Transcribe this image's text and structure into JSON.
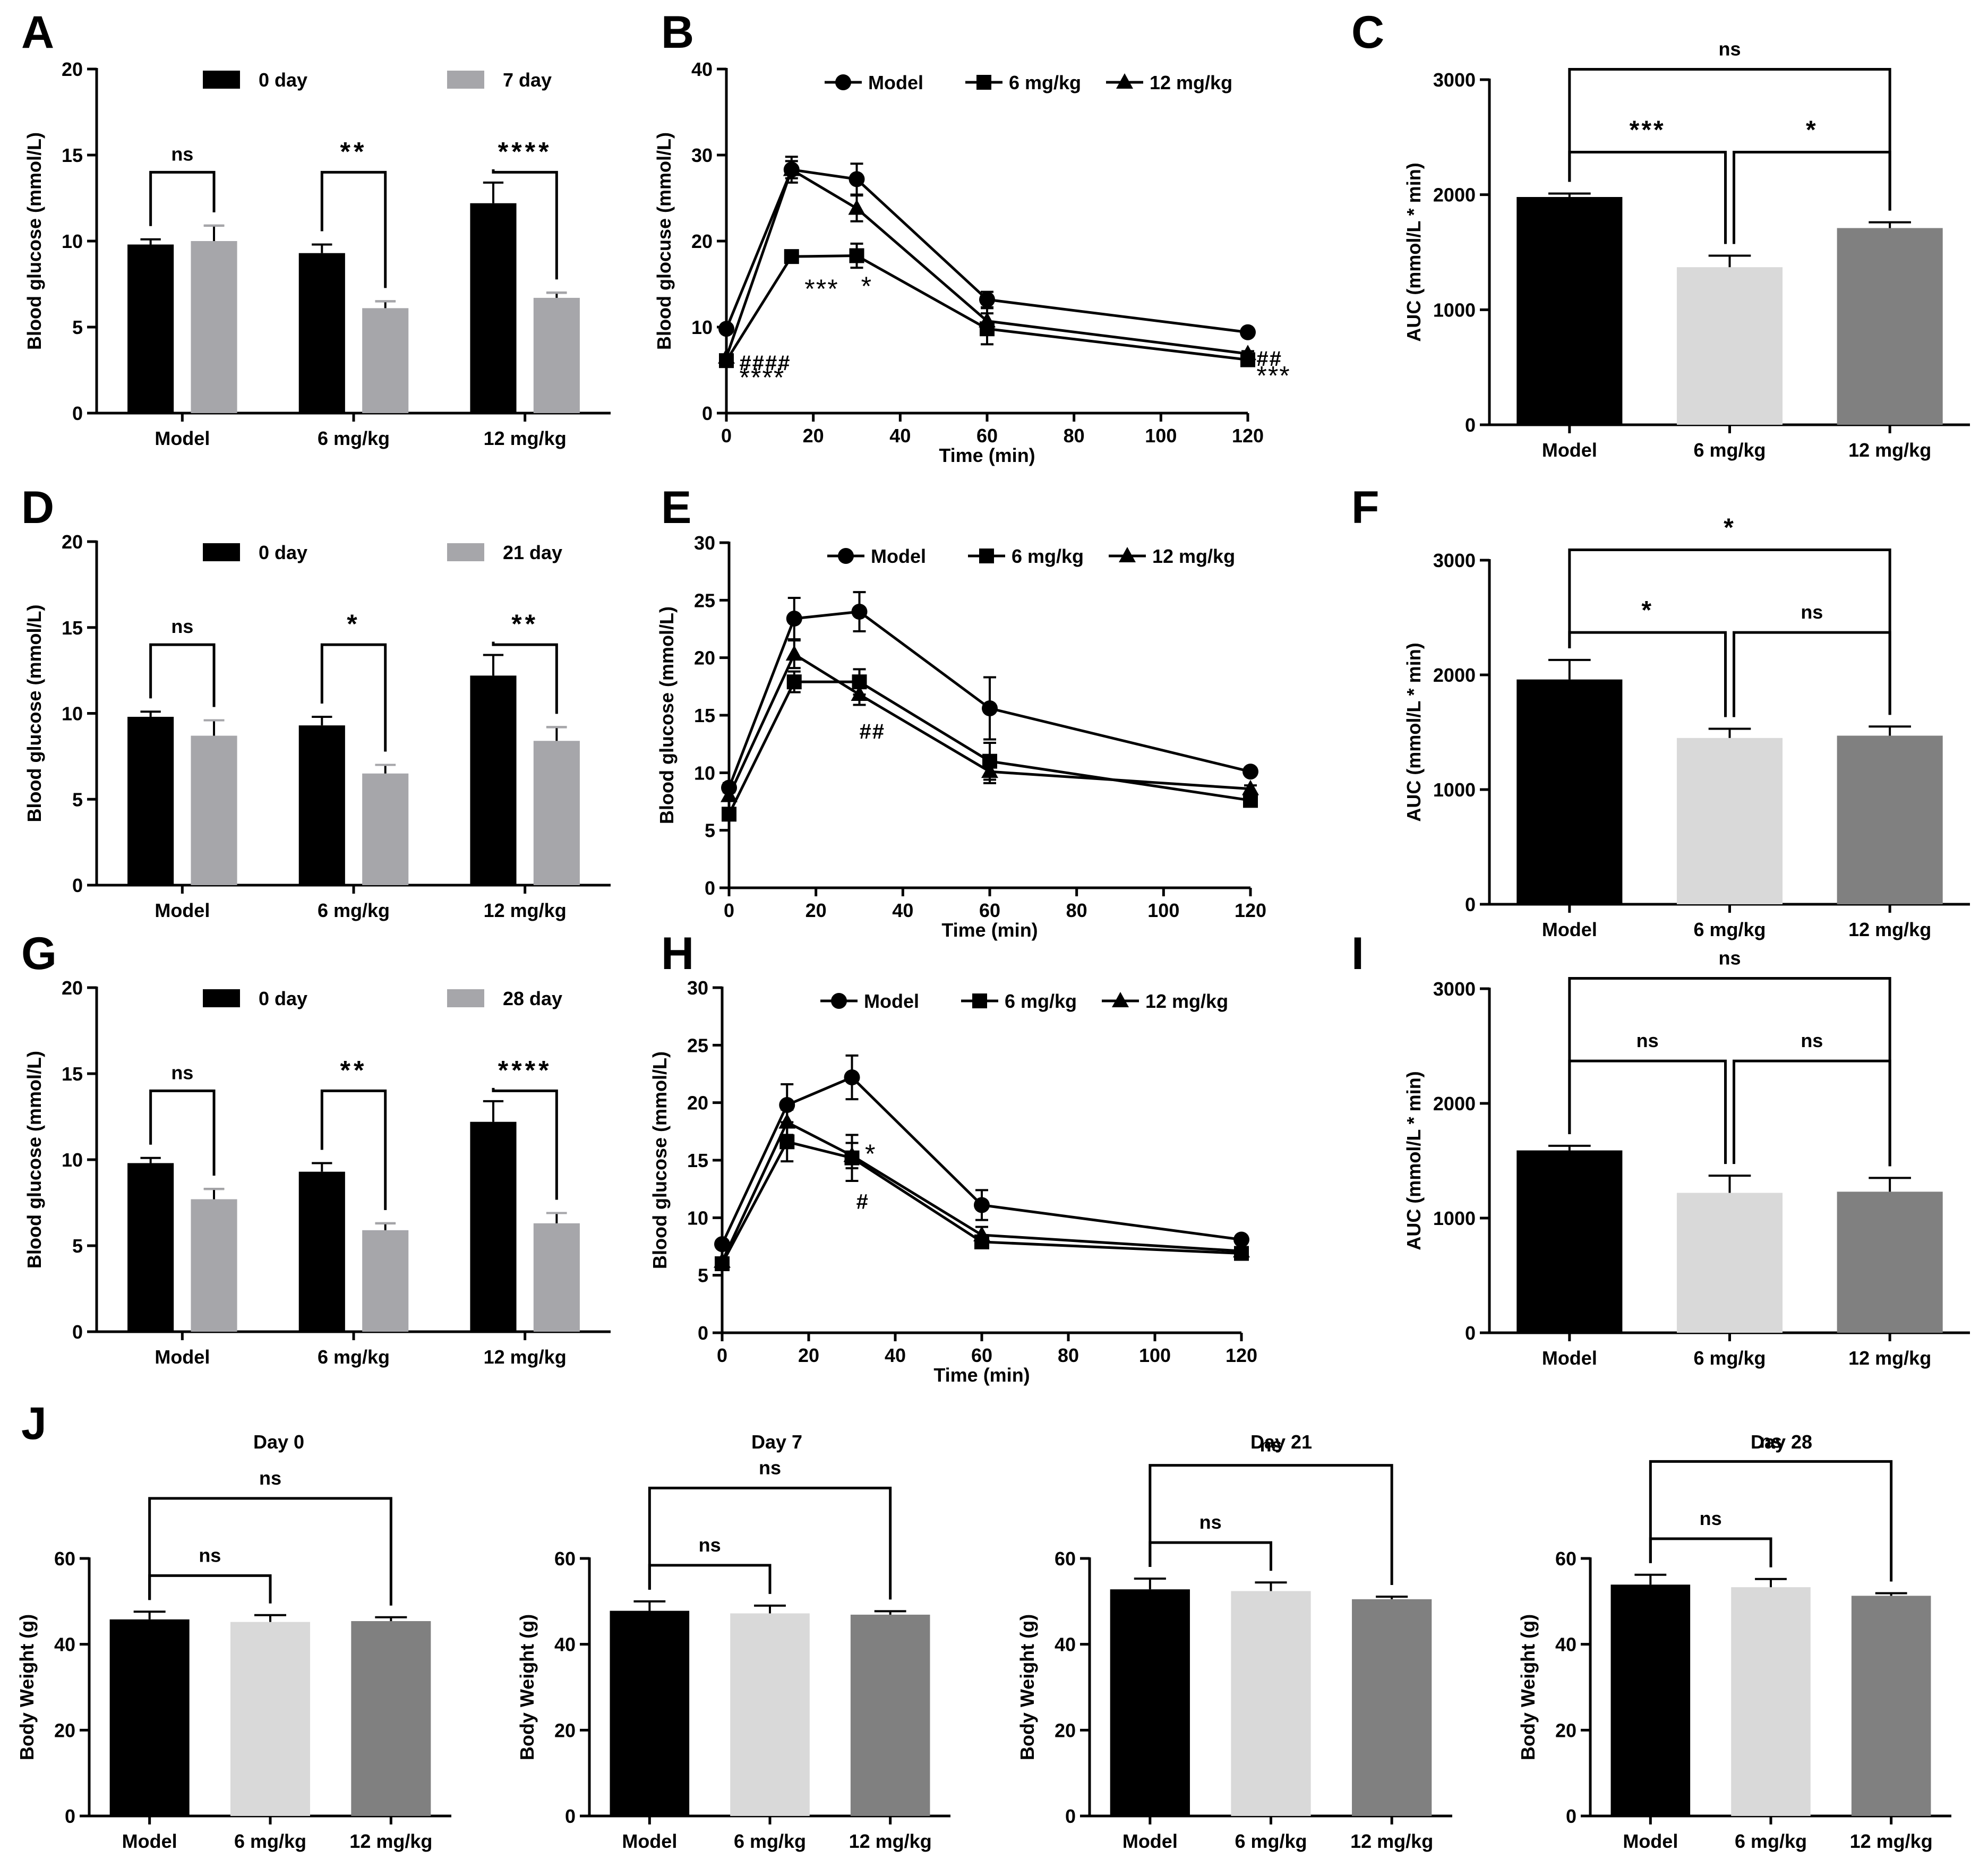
{
  "chart_data": [
    {
      "panel": "A",
      "type": "bar",
      "ylabel": "Blood glucose (mmol/L)",
      "ylim": [
        0,
        20
      ],
      "yticks": [
        0,
        5,
        10,
        15,
        20
      ],
      "categories": [
        "Model",
        "6 mg/kg",
        "12 mg/kg"
      ],
      "legend": [
        "0 day",
        "7 day"
      ],
      "series": [
        {
          "name": "0 day",
          "color": "#000000",
          "values": [
            9.8,
            9.3,
            12.2
          ],
          "err": [
            0.3,
            0.5,
            1.2
          ]
        },
        {
          "name": "7 day",
          "color": "#a6a6aa",
          "values": [
            10.0,
            6.1,
            6.7
          ],
          "err": [
            0.9,
            0.4,
            0.3
          ]
        }
      ],
      "sig": [
        "ns",
        "**",
        "****"
      ]
    },
    {
      "panel": "B",
      "type": "line",
      "ylabel": "Blood glocuse (mmol/L)",
      "xlabel": "Time (min)",
      "ylim": [
        0,
        40
      ],
      "yticks": [
        0,
        10,
        20,
        30,
        40
      ],
      "xlim": [
        0,
        120
      ],
      "xticks": [
        0,
        20,
        40,
        60,
        80,
        100,
        120
      ],
      "x": [
        0,
        15,
        30,
        60,
        120
      ],
      "series": [
        {
          "name": "Model",
          "marker": "circle",
          "values": [
            9.8,
            28.3,
            27.2,
            13.2,
            9.4
          ],
          "err": [
            0.3,
            1.5,
            1.8,
            0.9,
            0.3
          ]
        },
        {
          "name": "6 mg/kg",
          "marker": "square",
          "values": [
            6.1,
            18.2,
            18.3,
            9.8,
            6.2
          ],
          "err": [
            0.3,
            0.6,
            1.4,
            1.8,
            0.3
          ]
        },
        {
          "name": "12 mg/kg",
          "marker": "triangle",
          "values": [
            6.5,
            28.3,
            23.8,
            10.7,
            6.9
          ],
          "err": [
            0.3,
            1.0,
            1.5,
            1.5,
            0.3
          ]
        }
      ],
      "annotations": [
        {
          "text": "####",
          "x": 3,
          "y": 6.1
        },
        {
          "text": "****",
          "x": 3,
          "y": 4.2
        },
        {
          "text": "***",
          "x": 18,
          "y": 14.5
        },
        {
          "text": "*",
          "x": 31,
          "y": 14.8
        },
        {
          "text": "##",
          "x": 122,
          "y": 6.6
        },
        {
          "text": "***",
          "x": 122,
          "y": 4.4
        }
      ]
    },
    {
      "panel": "C",
      "type": "bar",
      "ylabel": "AUC (mmol/L * min)",
      "ylim": [
        0,
        3000
      ],
      "yticks": [
        0,
        1000,
        2000,
        3000
      ],
      "categories": [
        "Model",
        "6 mg/kg",
        "12 mg/kg"
      ],
      "colors": [
        "#000000",
        "#d9d9d9",
        "#808080"
      ],
      "values": [
        1980,
        1370,
        1710
      ],
      "err": [
        30,
        100,
        50
      ],
      "brackets": [
        {
          "from": 0,
          "to": 1,
          "label": "***"
        },
        {
          "from": 1,
          "to": 2,
          "label": "*"
        },
        {
          "from": 0,
          "to": 2,
          "label": "ns"
        }
      ]
    },
    {
      "panel": "D",
      "type": "bar",
      "ylabel": "Blood glucose (mmol/L)",
      "ylim": [
        0,
        20
      ],
      "yticks": [
        0,
        5,
        10,
        15,
        20
      ],
      "categories": [
        "Model",
        "6 mg/kg",
        "12 mg/kg"
      ],
      "legend": [
        "0 day",
        "21 day"
      ],
      "series": [
        {
          "name": "0 day",
          "color": "#000000",
          "values": [
            9.8,
            9.3,
            12.2
          ],
          "err": [
            0.3,
            0.5,
            1.2
          ]
        },
        {
          "name": "21 day",
          "color": "#a6a6aa",
          "values": [
            8.7,
            6.5,
            8.4
          ],
          "err": [
            0.9,
            0.5,
            0.8
          ]
        }
      ],
      "sig": [
        "ns",
        "*",
        "**"
      ]
    },
    {
      "panel": "E",
      "type": "line",
      "ylabel": "Blood glucose (mmol/L)",
      "xlabel": "Time (min)",
      "ylim": [
        0,
        30
      ],
      "yticks": [
        0,
        5,
        10,
        15,
        20,
        25,
        30
      ],
      "xlim": [
        0,
        120
      ],
      "xticks": [
        0,
        20,
        40,
        60,
        80,
        100,
        120
      ],
      "x": [
        0,
        15,
        30,
        60,
        120
      ],
      "series": [
        {
          "name": "Model",
          "marker": "circle",
          "values": [
            8.7,
            23.4,
            24.0,
            15.6,
            10.1
          ],
          "err": [
            0.4,
            1.8,
            1.7,
            2.7,
            0.3
          ]
        },
        {
          "name": "6 mg/kg",
          "marker": "square",
          "values": [
            6.4,
            17.9,
            17.9,
            11.0,
            7.6
          ],
          "err": [
            0.4,
            0.9,
            1.1,
            1.6,
            0.3
          ]
        },
        {
          "name": "12 mg/kg",
          "marker": "triangle",
          "values": [
            8.0,
            20.3,
            16.8,
            10.1,
            8.6
          ],
          "err": [
            0.4,
            1.2,
            0.9,
            1.0,
            0.3
          ]
        }
      ],
      "annotations": [
        {
          "text": "##",
          "x": 30,
          "y": 13.8
        }
      ]
    },
    {
      "panel": "F",
      "type": "bar",
      "ylabel": "AUC (mmol/L * min)",
      "ylim": [
        0,
        3000
      ],
      "yticks": [
        0,
        1000,
        2000,
        3000
      ],
      "categories": [
        "Model",
        "6 mg/kg",
        "12 mg/kg"
      ],
      "colors": [
        "#000000",
        "#d9d9d9",
        "#808080"
      ],
      "values": [
        1960,
        1450,
        1470
      ],
      "err": [
        170,
        80,
        80
      ],
      "brackets": [
        {
          "from": 0,
          "to": 1,
          "label": "*"
        },
        {
          "from": 1,
          "to": 2,
          "label": "ns"
        },
        {
          "from": 0,
          "to": 2,
          "label": "*"
        }
      ]
    },
    {
      "panel": "G",
      "type": "bar",
      "ylabel": "Blood glucose (mmol/L)",
      "ylim": [
        0,
        20
      ],
      "yticks": [
        0,
        5,
        10,
        15,
        20
      ],
      "categories": [
        "Model",
        "6 mg/kg",
        "12 mg/kg"
      ],
      "legend": [
        "0 day",
        "28 day"
      ],
      "series": [
        {
          "name": "0 day",
          "color": "#000000",
          "values": [
            9.8,
            9.3,
            12.2
          ],
          "err": [
            0.3,
            0.5,
            1.2
          ]
        },
        {
          "name": "28 day",
          "color": "#a6a6aa",
          "values": [
            7.7,
            5.9,
            6.3
          ],
          "err": [
            0.6,
            0.4,
            0.6
          ]
        }
      ],
      "sig": [
        "ns",
        "**",
        "****"
      ]
    },
    {
      "panel": "H",
      "type": "line",
      "ylabel": "Blood glucose (mmol/L)",
      "xlabel": "Time (min)",
      "ylim": [
        0,
        30
      ],
      "yticks": [
        0,
        5,
        10,
        15,
        20,
        25,
        30
      ],
      "xlim": [
        0,
        120
      ],
      "xticks": [
        0,
        20,
        40,
        60,
        80,
        100,
        120
      ],
      "x": [
        0,
        15,
        30,
        60,
        120
      ],
      "series": [
        {
          "name": "Model",
          "marker": "circle",
          "values": [
            7.7,
            19.8,
            22.2,
            11.1,
            8.1
          ],
          "err": [
            0.3,
            1.8,
            1.9,
            1.3,
            0.3
          ]
        },
        {
          "name": "6 mg/kg",
          "marker": "square",
          "values": [
            6.0,
            16.6,
            15.2,
            7.9,
            6.9
          ],
          "err": [
            0.3,
            1.7,
            2.0,
            0.5,
            0.3
          ]
        },
        {
          "name": "12 mg/kg",
          "marker": "triangle",
          "values": [
            6.2,
            18.3,
            15.4,
            8.5,
            7.1
          ],
          "err": [
            0.3,
            1.1,
            1.1,
            0.7,
            0.3
          ]
        }
      ],
      "annotations": [
        {
          "text": "*",
          "x": 33,
          "y": 15.6
        },
        {
          "text": "#",
          "x": 31,
          "y": 11.6
        }
      ]
    },
    {
      "panel": "I",
      "type": "bar",
      "ylabel": "AUC (mmol/L * min)",
      "ylim": [
        0,
        3000
      ],
      "yticks": [
        0,
        1000,
        2000,
        3000
      ],
      "categories": [
        "Model",
        "6 mg/kg",
        "12 mg/kg"
      ],
      "colors": [
        "#000000",
        "#d9d9d9",
        "#808080"
      ],
      "values": [
        1590,
        1220,
        1230
      ],
      "err": [
        40,
        150,
        120
      ],
      "brackets": [
        {
          "from": 0,
          "to": 1,
          "label": "ns"
        },
        {
          "from": 1,
          "to": 2,
          "label": "ns"
        },
        {
          "from": 0,
          "to": 2,
          "label": "ns"
        }
      ]
    },
    {
      "panel": "J1",
      "type": "bar",
      "title": "Day 0",
      "ylabel": "Body Weight (g)",
      "ylim": [
        0,
        60
      ],
      "yticks": [
        0,
        20,
        40,
        60
      ],
      "categories": [
        "Model",
        "6 mg/kg",
        "12 mg/kg"
      ],
      "colors": [
        "#000000",
        "#d9d9d9",
        "#808080"
      ],
      "values": [
        45.8,
        45.2,
        45.4
      ],
      "err": [
        1.8,
        1.6,
        0.9
      ],
      "brackets": [
        {
          "from": 0,
          "to": 1,
          "label": "ns"
        },
        {
          "from": 0,
          "to": 2,
          "label": "ns"
        }
      ]
    },
    {
      "panel": "J2",
      "type": "bar",
      "title": "Day 7",
      "ylabel": "Body Weight (g)",
      "ylim": [
        0,
        60
      ],
      "yticks": [
        0,
        20,
        40,
        60
      ],
      "categories": [
        "Model",
        "6 mg/kg",
        "12 mg/kg"
      ],
      "colors": [
        "#000000",
        "#d9d9d9",
        "#808080"
      ],
      "values": [
        47.8,
        47.2,
        46.9
      ],
      "err": [
        2.2,
        1.8,
        0.8
      ],
      "brackets": [
        {
          "from": 0,
          "to": 1,
          "label": "ns"
        },
        {
          "from": 0,
          "to": 2,
          "label": "ns"
        }
      ]
    },
    {
      "panel": "J3",
      "type": "bar",
      "title": "Day 21",
      "ylabel": "Body Weight (g)",
      "ylim": [
        0,
        60
      ],
      "yticks": [
        0,
        20,
        40,
        60
      ],
      "categories": [
        "Model",
        "6 mg/kg",
        "12 mg/kg"
      ],
      "colors": [
        "#000000",
        "#d9d9d9",
        "#808080"
      ],
      "values": [
        52.8,
        52.4,
        50.5
      ],
      "err": [
        2.5,
        2.0,
        0.6
      ],
      "brackets": [
        {
          "from": 0,
          "to": 1,
          "label": "ns"
        },
        {
          "from": 0,
          "to": 2,
          "label": "ns"
        }
      ]
    },
    {
      "panel": "J4",
      "type": "bar",
      "title": "Day 28",
      "ylabel": "Body Weight (g)",
      "ylim": [
        0,
        60
      ],
      "yticks": [
        0,
        20,
        40,
        60
      ],
      "categories": [
        "Model",
        "6 mg/kg",
        "12 mg/kg"
      ],
      "colors": [
        "#000000",
        "#d9d9d9",
        "#808080"
      ],
      "values": [
        53.9,
        53.3,
        51.3
      ],
      "err": [
        2.3,
        1.9,
        0.6
      ],
      "brackets": [
        {
          "from": 0,
          "to": 1,
          "label": "ns"
        },
        {
          "from": 0,
          "to": 2,
          "label": "ns"
        }
      ]
    }
  ],
  "panel_letters": [
    "A",
    "B",
    "C",
    "D",
    "E",
    "F",
    "G",
    "H",
    "I",
    "J"
  ]
}
